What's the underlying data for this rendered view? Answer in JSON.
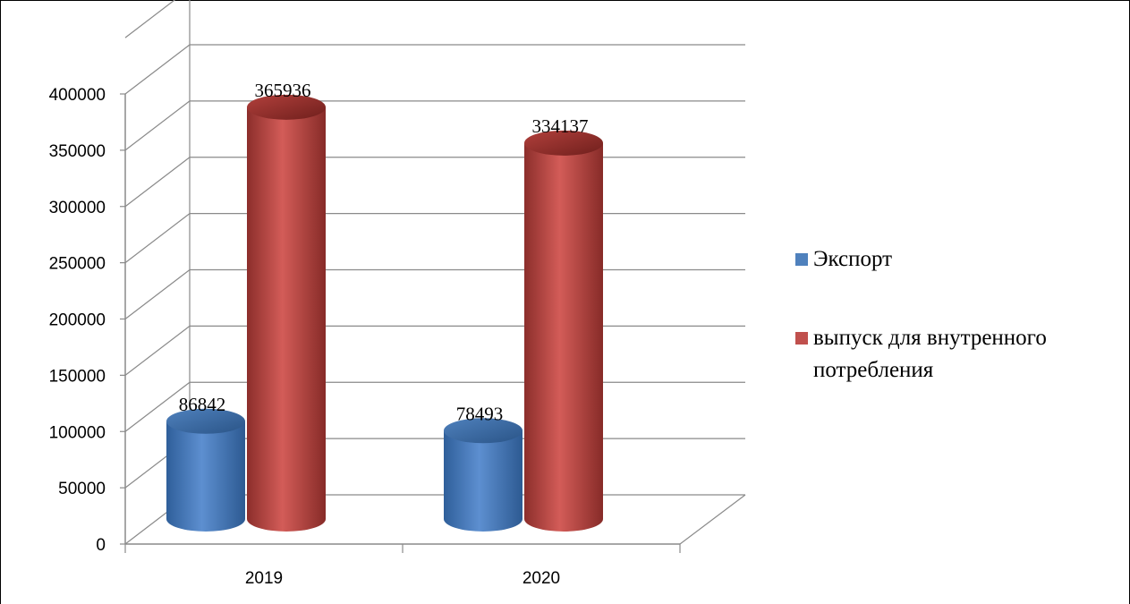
{
  "chart_data": {
    "type": "bar",
    "style": "3d-cylinder",
    "categories": [
      "2019",
      "2020"
    ],
    "series": [
      {
        "name": "Экспорт",
        "values": [
          86842,
          78493
        ],
        "color": "#4F81BD"
      },
      {
        "name": "выпуск для внутренного потребления",
        "values": [
          365936,
          334137
        ],
        "color": "#C0504D"
      }
    ],
    "y_ticks": [
      "0",
      "50000",
      "100000",
      "150000",
      "200000",
      "250000",
      "300000",
      "350000",
      "400000"
    ],
    "ylim": [
      0,
      400000
    ],
    "grid": true,
    "legend_position": "right",
    "data_labels": true
  }
}
